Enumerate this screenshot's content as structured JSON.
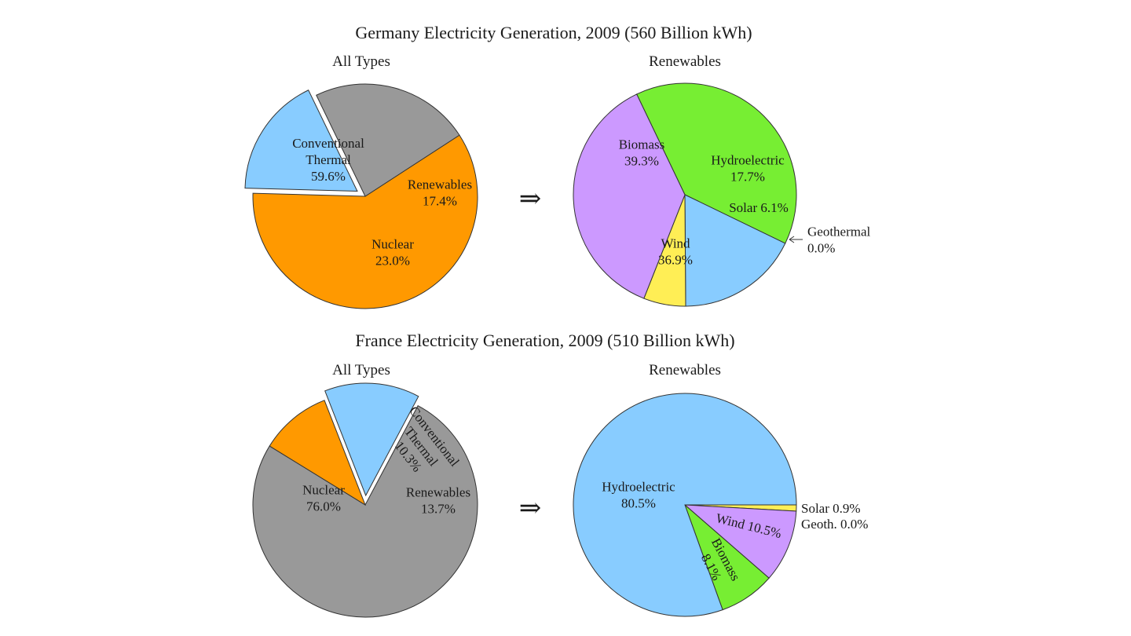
{
  "colors": {
    "conventional_thermal": "#ff9900",
    "nuclear": "#999999",
    "renewables": "#88ccff",
    "biomass": "#77ee33",
    "hydroelectric": "#88ccff",
    "solar": "#ffee55",
    "wind": "#cc99ff",
    "geothermal": "#ffffff"
  },
  "chart_data": [
    {
      "type": "pie",
      "group_title": "Germany Electricity Generation, 2009 (560 Billion kWh)",
      "title": "All Types",
      "slices": [
        {
          "key": "conventional_thermal",
          "label_lines": [
            "Conventional",
            "Thermal",
            "59.6%"
          ],
          "value": 59.6
        },
        {
          "key": "renewables",
          "label_lines": [
            "Renewables",
            "17.4%"
          ],
          "value": 17.4,
          "exploded": true
        },
        {
          "key": "nuclear",
          "label_lines": [
            "Nuclear",
            "23.0%"
          ],
          "value": 23.0
        }
      ]
    },
    {
      "type": "pie",
      "title": "Renewables",
      "slices": [
        {
          "key": "biomass",
          "label_lines": [
            "Biomass",
            "39.3%"
          ],
          "value": 39.3
        },
        {
          "key": "hydroelectric",
          "label_lines": [
            "Hydroelectric",
            "17.7%"
          ],
          "value": 17.7
        },
        {
          "key": "solar",
          "label_lines": [
            "Solar 6.1%"
          ],
          "value": 6.1
        },
        {
          "key": "geothermal",
          "label_lines": [
            "Geothermal",
            "0.0%"
          ],
          "value": 0.0
        },
        {
          "key": "wind",
          "label_lines": [
            "Wind",
            "36.9%"
          ],
          "value": 36.9
        }
      ]
    },
    {
      "type": "pie",
      "group_title": "France Electricity Generation, 2009 (510 Billion kWh)",
      "title": "All Types",
      "slices": [
        {
          "key": "nuclear",
          "label_lines": [
            "Nuclear",
            "76.0%"
          ],
          "value": 76.0
        },
        {
          "key": "conventional_thermal",
          "label_lines": [
            "Conventional",
            "Thermal",
            "10.3%"
          ],
          "value": 10.3
        },
        {
          "key": "renewables",
          "label_lines": [
            "Renewables",
            "13.7%"
          ],
          "value": 13.7,
          "exploded": true
        }
      ]
    },
    {
      "type": "pie",
      "title": "Renewables",
      "slices": [
        {
          "key": "hydroelectric",
          "label_lines": [
            "Hydroelectric",
            "80.5%"
          ],
          "value": 80.5
        },
        {
          "key": "solar",
          "label_lines": [
            "Solar  0.9%"
          ],
          "value": 0.9
        },
        {
          "key": "geothermal",
          "label_lines": [
            "Geoth.  0.0%"
          ],
          "value": 0.0
        },
        {
          "key": "wind",
          "label_lines": [
            "Wind  10.5%"
          ],
          "value": 10.5
        },
        {
          "key": "biomass",
          "label_lines": [
            "Biomass",
            "8.1%"
          ],
          "value": 8.1
        }
      ]
    }
  ],
  "arrow_symbol": "⇒"
}
